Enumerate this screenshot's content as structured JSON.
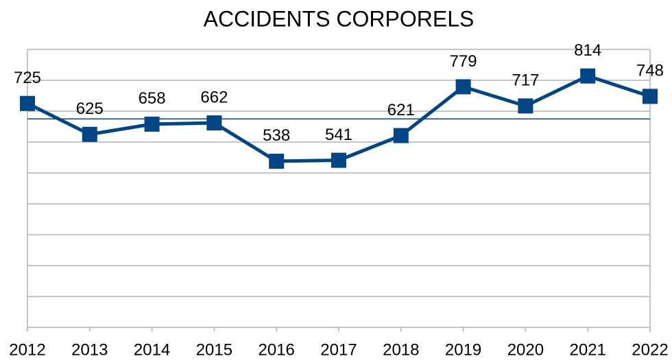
{
  "chart_data": {
    "type": "line",
    "title": "ACCIDENTS CORPORELS",
    "categories": [
      "2012",
      "2013",
      "2014",
      "2015",
      "2016",
      "2017",
      "2018",
      "2019",
      "2020",
      "2021",
      "2022"
    ],
    "series": [
      {
        "name": "Accidents corporels",
        "color": "#004586",
        "values": [
          725,
          625,
          658,
          662,
          538,
          541,
          621,
          779,
          717,
          814,
          748
        ]
      }
    ],
    "average": 675,
    "ylim": [
      0,
      900
    ],
    "yticks": [
      0,
      100,
      200,
      300,
      400,
      500,
      600,
      700,
      800,
      900
    ],
    "grid": true
  }
}
